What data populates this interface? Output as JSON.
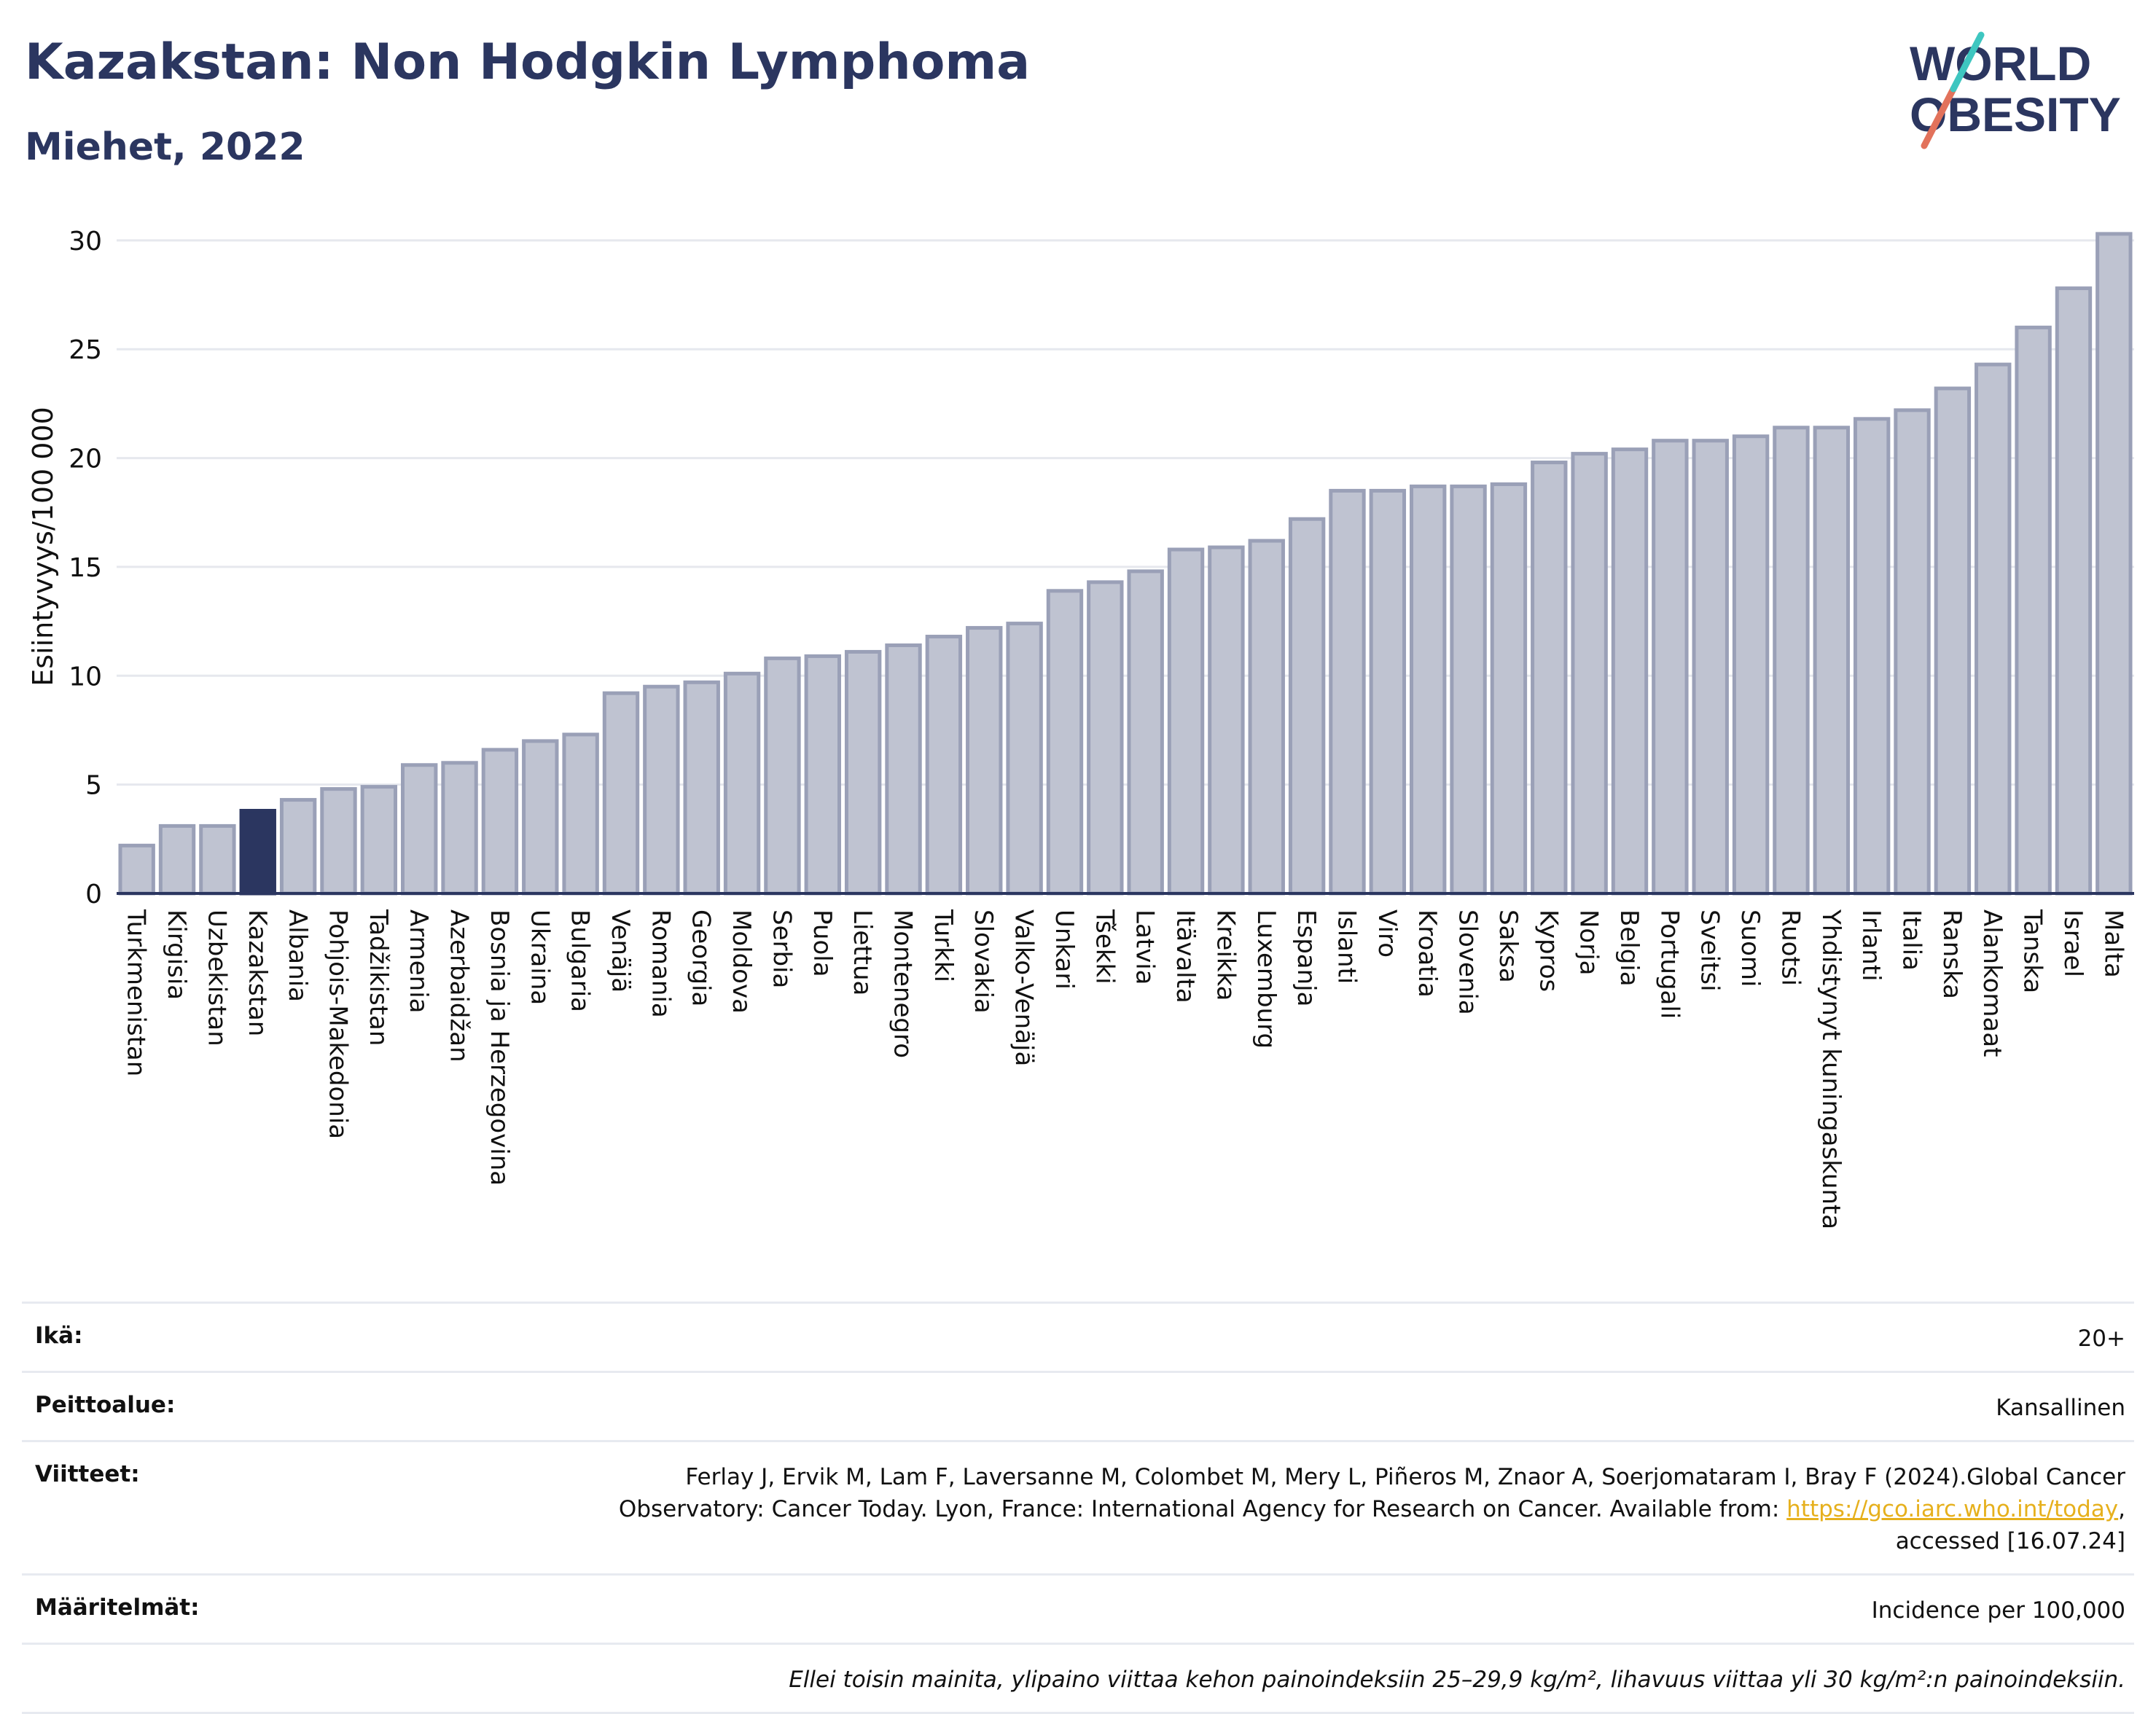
{
  "header": {
    "title": "Kazakstan: Non Hodgkin Lymphoma",
    "subtitle": "Miehet, 2022"
  },
  "logo": {
    "line1": "WORLD",
    "line2": "OBESITY"
  },
  "colors": {
    "bar": "#bfc3d1",
    "bar_stroke": "#9aa0b7",
    "highlight": "#2b3660",
    "title": "#2b3660",
    "grid": "#e6e8ee"
  },
  "chart_data": {
    "type": "bar",
    "categories": [
      "Turkmenistan",
      "Kirgisia",
      "Uzbekistan",
      "Kazakstan",
      "Albania",
      "Pohjois-Makedonia",
      "Tadžikistan",
      "Armenia",
      "Azerbaidžan",
      "Bosnia ja Herzegovina",
      "Ukraina",
      "Bulgaria",
      "Venäjä",
      "Romania",
      "Georgia",
      "Moldova",
      "Serbia",
      "Puola",
      "Liettua",
      "Montenegro",
      "Turkki",
      "Slovakia",
      "Valko-Venäjä",
      "Unkari",
      "Tšekki",
      "Latvia",
      "Itävalta",
      "Kreikka",
      "Luxemburg",
      "Espanja",
      "Islanti",
      "Viro",
      "Kroatia",
      "Slovenia",
      "Saksa",
      "Kypros",
      "Norja",
      "Belgia",
      "Portugali",
      "Sveitsi",
      "Suomi",
      "Ruotsi",
      "Yhdistynyt kuningaskunta",
      "Irlanti",
      "Italia",
      "Ranska",
      "Alankomaat",
      "Tanska",
      "Israel",
      "Malta"
    ],
    "values": [
      2.2,
      3.1,
      3.1,
      3.8,
      4.3,
      4.8,
      4.9,
      5.9,
      6.0,
      6.6,
      7.0,
      7.3,
      9.2,
      9.5,
      9.7,
      10.1,
      10.8,
      10.9,
      11.1,
      11.4,
      11.8,
      12.2,
      12.4,
      13.9,
      14.3,
      14.8,
      15.8,
      15.9,
      16.2,
      17.2,
      18.5,
      18.5,
      18.7,
      18.7,
      18.8,
      19.8,
      20.2,
      20.4,
      20.8,
      20.8,
      21.0,
      21.4,
      21.4,
      21.8,
      22.2,
      23.2,
      24.3,
      26.0,
      27.8,
      30.3
    ],
    "highlight": "Kazakstan",
    "ylabel": "Esiintyvyys/100 000",
    "yticks": [
      0,
      5,
      10,
      15,
      20,
      25,
      30
    ],
    "ylim": [
      0,
      31
    ],
    "grid": true
  },
  "meta": {
    "age_label": "Ikä:",
    "age_value": "20+",
    "coverage_label": "Peittoalue:",
    "coverage_value": "Kansallinen",
    "refs_label": "Viitteet:",
    "refs_line1": "Ferlay J, Ervik M, Lam F, Laversanne M, Colombet M, Mery L, Piñeros M, Znaor A, Soerjomataram I, Bray F (2024).Global Cancer",
    "refs_line2_pre": "Observatory: Cancer Today. Lyon, France: International Agency for Research on Cancer. Available from: ",
    "refs_link": "https://gco.iarc.who.int/today",
    "refs_line2_post": ",",
    "refs_line3": "accessed [16.07.24]",
    "defs_label": "Määritelmät:",
    "defs_value": "Incidence per 100,000",
    "note": "Ellei toisin mainita, ylipaino viittaa kehon painoindeksiin 25–29,9 kg/m², lihavuus viittaa yli 30 kg/m²:n painoindeksiin."
  }
}
